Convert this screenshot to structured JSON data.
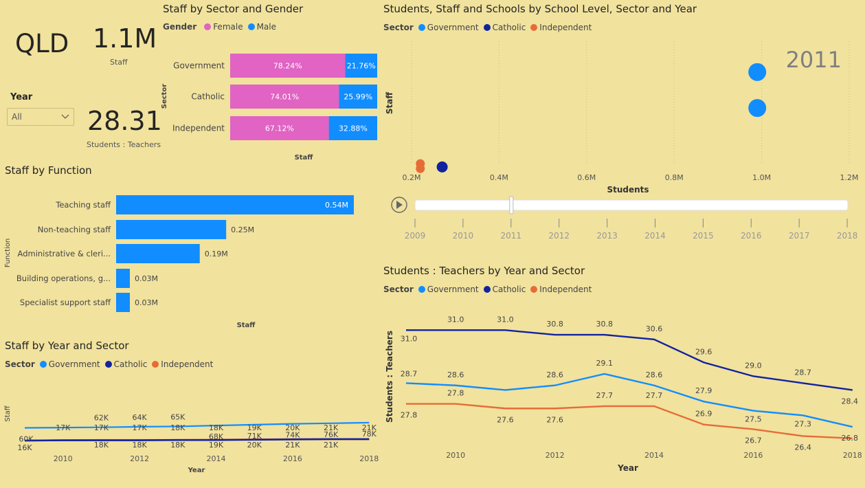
{
  "kpis": {
    "state": "QLD",
    "staff_value": "1.1M",
    "staff_label": "Staff",
    "ratio_value": "28.31",
    "ratio_label": "Students : Teachers"
  },
  "year_slicer": {
    "label": "Year",
    "value": "All",
    "chevron": "chevron-down-icon"
  },
  "colors": {
    "government": "#118dff",
    "catholic": "#12239e",
    "independent": "#e66c37",
    "female": "#e163c3",
    "male": "#118dff"
  },
  "chart_data": [
    {
      "id": "gender",
      "type": "bar",
      "title": "Staff by Sector and Gender",
      "legend_title": "Gender",
      "ylabel": "Sector",
      "xlabel": "Staff",
      "categories": [
        "Government",
        "Catholic",
        "Independent"
      ],
      "series": [
        {
          "name": "Female",
          "values": [
            78.24,
            74.01,
            67.12
          ],
          "labels": [
            "78.24%",
            "74.01%",
            "67.12%"
          ]
        },
        {
          "name": "Male",
          "values": [
            21.76,
            25.99,
            32.88
          ],
          "labels": [
            "21.76%",
            "25.99%",
            "32.88%"
          ]
        }
      ],
      "stacked": "100%"
    },
    {
      "id": "function",
      "type": "bar",
      "title": "Staff by Function",
      "ylabel": "Function",
      "xlabel": "Staff",
      "categories": [
        "Teaching staff",
        "Non-teaching staff",
        "Administrative & cleri...",
        "Building operations, g...",
        "Specialist support staff"
      ],
      "values": [
        0.54,
        0.25,
        0.19,
        0.03,
        0.03
      ],
      "labels": [
        "0.54M",
        "0.25M",
        "0.19M",
        "0.03M",
        "0.03M"
      ]
    },
    {
      "id": "staffyear",
      "type": "line",
      "title": "Staff by Year and Sector",
      "legend_title": "Sector",
      "xlabel": "Year",
      "ylabel": "Staff",
      "x": [
        2009,
        2010,
        2011,
        2012,
        2013,
        2014,
        2015,
        2016,
        2017,
        2018
      ],
      "x_ticks": [
        "2010",
        "2012",
        "2014",
        "2016",
        "2018"
      ],
      "series": [
        {
          "name": "Government",
          "values": [
            60,
            61,
            62,
            64,
            65,
            68,
            71,
            74,
            76,
            78
          ],
          "labels": [
            "60K",
            "",
            "62K",
            "64K",
            "65K",
            "68K",
            "71K",
            "74K",
            "76K",
            "78K"
          ]
        },
        {
          "name": "Catholic",
          "values": [
            16,
            17,
            17,
            17,
            18,
            18,
            19,
            20,
            21,
            21
          ],
          "labels": [
            "16K",
            "17K",
            "17K",
            "17K",
            "18K",
            "18K",
            "19K",
            "20K",
            "21K",
            "21K"
          ]
        },
        {
          "name": "Independent",
          "values": [
            16,
            17,
            18,
            18,
            18,
            19,
            20,
            21,
            21,
            21
          ],
          "labels": [
            "",
            "",
            "18K",
            "18K",
            "18K",
            "19K",
            "20K",
            "21K",
            "21K",
            ""
          ]
        }
      ]
    },
    {
      "id": "scatter",
      "type": "scatter",
      "title": "Students, Staff and Schools by School Level, Sector and Year",
      "legend_title": "Sector",
      "xlabel": "Students",
      "ylabel": "Staff",
      "xlim": [
        0.2,
        1.2
      ],
      "x_ticks": [
        "0.2M",
        "0.4M",
        "0.6M",
        "0.8M",
        "1.0M",
        "1.2M"
      ],
      "play_year": "2011",
      "points": [
        {
          "series": "Government",
          "x": 0.99,
          "y": 0.78
        },
        {
          "series": "Government",
          "x": 0.99,
          "y": 0.56
        },
        {
          "series": "Catholic",
          "x": 0.27,
          "y": 0.2
        },
        {
          "series": "Independent",
          "x": 0.22,
          "y": 0.22
        },
        {
          "series": "Independent",
          "x": 0.22,
          "y": 0.19
        }
      ],
      "timeline": [
        "2009",
        "2010",
        "2011",
        "2012",
        "2013",
        "2014",
        "2015",
        "2016",
        "2017",
        "2018"
      ],
      "timeline_selected": "2011"
    },
    {
      "id": "ratio",
      "type": "line",
      "title": "Students : Teachers by Year and Sector",
      "legend_title": "Sector",
      "xlabel": "Year",
      "ylabel": "Students : Teachers",
      "x": [
        2009,
        2010,
        2011,
        2012,
        2013,
        2014,
        2015,
        2016,
        2017,
        2018
      ],
      "x_ticks": [
        "2010",
        "2012",
        "2014",
        "2016",
        "2018"
      ],
      "series": [
        {
          "name": "Government",
          "values": [
            28.7,
            28.6,
            28.4,
            28.6,
            29.1,
            28.6,
            27.9,
            27.5,
            27.3,
            26.8
          ],
          "labels": [
            "28.7",
            "28.6",
            "",
            "28.6",
            "29.1",
            "28.6",
            "27.9",
            "27.5",
            "27.3",
            "26.8"
          ]
        },
        {
          "name": "Catholic",
          "values": [
            31.0,
            31.0,
            31.0,
            30.8,
            30.8,
            30.6,
            29.6,
            29.0,
            28.7,
            28.4
          ],
          "labels": [
            "31.0",
            "31.0",
            "31.0",
            "30.8",
            "30.8",
            "30.6",
            "29.6",
            "29.0",
            "28.7",
            "28.4"
          ]
        },
        {
          "name": "Independent",
          "values": [
            27.8,
            27.8,
            27.6,
            27.6,
            27.7,
            27.7,
            26.9,
            26.7,
            26.4,
            26.3
          ],
          "labels": [
            "27.8",
            "27.8",
            "27.6",
            "27.6",
            "27.7",
            "27.7",
            "26.9",
            "26.7",
            "26.4",
            ""
          ]
        }
      ]
    }
  ],
  "legends": {
    "gender": [
      "Female",
      "Male"
    ],
    "sector": [
      "Government",
      "Catholic",
      "Independent"
    ]
  }
}
